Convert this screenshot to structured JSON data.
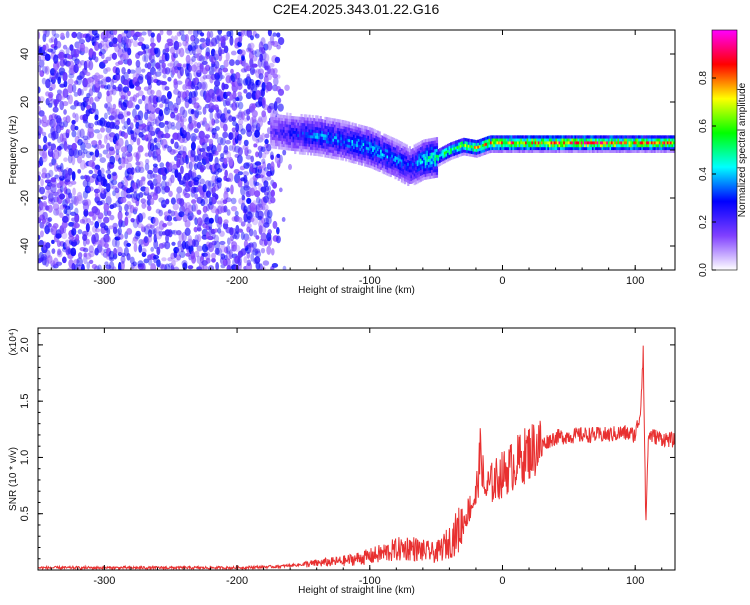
{
  "title": "C2E4.2025.343.01.22.G16",
  "chart_data": [
    {
      "type": "heatmap",
      "xlabel": "Height of straight line (km)",
      "ylabel": "Frequency (Hz)",
      "xlim": [
        -350,
        130
      ],
      "ylim": [
        -50,
        50
      ],
      "x_ticks": [
        -300,
        -200,
        -100,
        0,
        100
      ],
      "x_tick_labels": [
        "-300",
        "-200",
        "-100",
        "0",
        "100"
      ],
      "y_ticks": [
        -40,
        -20,
        0,
        20,
        40
      ],
      "y_tick_labels": [
        "-40",
        "-20",
        "0",
        "20",
        "40"
      ],
      "colorbar": {
        "label": "Normalized spectral amplitude",
        "range": [
          0,
          1
        ],
        "ticks": [
          0,
          0.2,
          0.4,
          0.6,
          0.8
        ],
        "tick_labels": [
          "0.0",
          "0.2",
          "0.4",
          "0.6",
          "0.8"
        ],
        "colors": [
          "#ffffff",
          "#8040ff",
          "#0000ff",
          "#00ffff",
          "#00ff00",
          "#ffff00",
          "#ff0000",
          "#ff00ff"
        ]
      },
      "noise_region": {
        "x": [
          -350,
          -160
        ],
        "amplitude": 0.25
      },
      "signal_track": {
        "x": [
          -175,
          -160,
          -140,
          -120,
          -100,
          -80,
          -70,
          -60,
          -50,
          -40,
          -30,
          -20,
          -10,
          0,
          20,
          40,
          60,
          80,
          100,
          130
        ],
        "y": [
          8,
          7,
          6,
          4,
          1,
          -4,
          -7,
          -4,
          -3,
          0,
          2,
          1,
          3,
          3,
          3,
          3,
          3,
          3,
          3,
          3
        ],
        "amplitude": [
          0.2,
          0.3,
          0.4,
          0.4,
          0.45,
          0.4,
          0.35,
          0.5,
          0.6,
          0.7,
          0.75,
          0.8,
          0.85,
          0.9,
          0.9,
          0.9,
          0.9,
          0.9,
          0.85,
          0.85
        ]
      }
    },
    {
      "type": "line",
      "xlabel": "Height of straight line (km)",
      "ylabel": "SNR (10 * v/v)",
      "y_multiplier_label": "(x10⁴)",
      "xlim": [
        -350,
        130
      ],
      "ylim": [
        0,
        2.15
      ],
      "x_ticks": [
        -300,
        -200,
        -100,
        0,
        100
      ],
      "x_tick_labels": [
        "-300",
        "-200",
        "-100",
        "0",
        "100"
      ],
      "y_ticks": [
        0.5,
        1.0,
        1.5,
        2.0
      ],
      "y_tick_labels": [
        "0.5",
        "1.0",
        "1.5",
        "2.0"
      ],
      "color": "#e83030",
      "series": [
        {
          "x": [
            -350,
            -300,
            -250,
            -200,
            -170,
            -150,
            -120,
            -100,
            -90,
            -80,
            -70,
            -60,
            -50,
            -40,
            -30,
            -25,
            -20,
            -16,
            -14,
            -10,
            0,
            10,
            20,
            30,
            40,
            60,
            80,
            90,
            100,
            104,
            106,
            108,
            110,
            120,
            130
          ],
          "y": [
            0.02,
            0.02,
            0.02,
            0.02,
            0.03,
            0.05,
            0.08,
            0.12,
            0.15,
            0.18,
            0.2,
            0.17,
            0.15,
            0.25,
            0.4,
            0.55,
            0.65,
            1.1,
            0.7,
            0.75,
            0.85,
            0.95,
            1.05,
            1.12,
            1.18,
            1.2,
            1.2,
            1.22,
            1.2,
            1.4,
            2.0,
            0.4,
            1.2,
            1.17,
            1.15
          ]
        }
      ]
    }
  ]
}
